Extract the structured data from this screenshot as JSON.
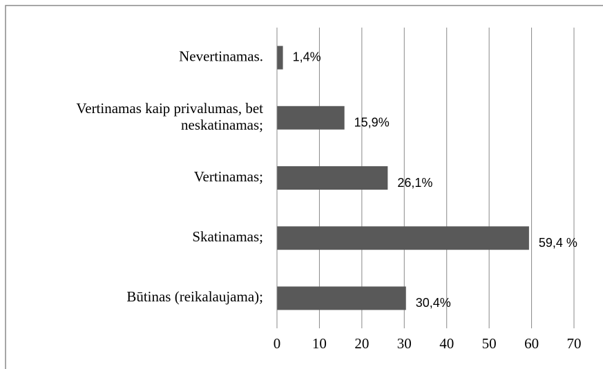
{
  "chart_data": {
    "type": "barh",
    "categories": [
      "Nevertinamas.",
      "Vertinamas kaip privalumas, bet neskatinamas;",
      "Vertinamas;",
      "Skatinamas;",
      "Būtinas (reikalaujama);"
    ],
    "values": [
      1.4,
      15.9,
      26.1,
      59.4,
      30.4
    ],
    "value_labels": [
      "1,4%",
      "15,9%",
      "26,1%",
      "59,4 %",
      "30,4%"
    ],
    "color": "#595959",
    "xlim": [
      0,
      70
    ],
    "xticks": [
      0,
      10,
      20,
      30,
      40,
      50,
      60,
      70
    ],
    "grid": true
  }
}
